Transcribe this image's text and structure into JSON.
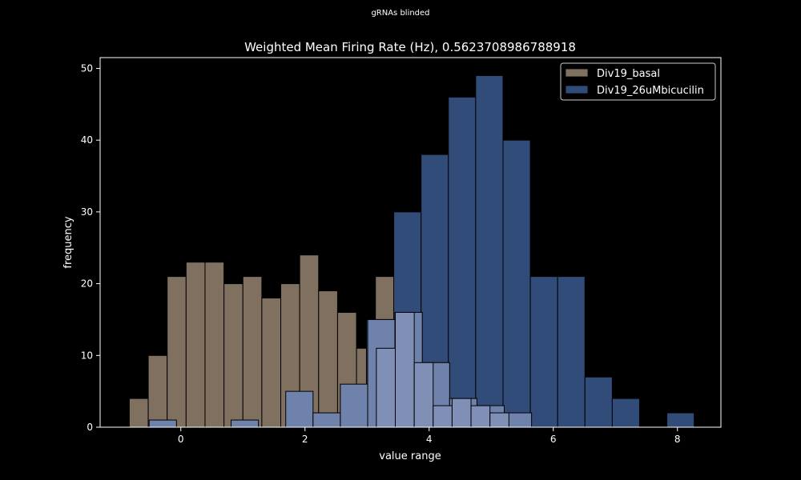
{
  "suptitle": "gRNAs blinded",
  "chart_data": {
    "type": "histogram",
    "title": "Weighted Mean Firing Rate (Hz), 0.5623708986788918",
    "xlabel": "value range",
    "ylabel": "frequency",
    "xlim": [
      -1.3,
      8.7
    ],
    "ylim": [
      0,
      51.5
    ],
    "xticks": [
      0,
      2,
      4,
      6,
      8
    ],
    "yticks": [
      0,
      10,
      20,
      30,
      40,
      50
    ],
    "grid": false,
    "legend_position": "top-right",
    "series": [
      {
        "name": "Div19_basal",
        "color": "#7f7060",
        "bin_width": 0.305,
        "bins": [
          {
            "x0": -0.83,
            "count": 4
          },
          {
            "x0": -0.525,
            "count": 10
          },
          {
            "x0": -0.22,
            "count": 21
          },
          {
            "x0": 0.085,
            "count": 23
          },
          {
            "x0": 0.39,
            "count": 23
          },
          {
            "x0": 0.695,
            "count": 20
          },
          {
            "x0": 1.0,
            "count": 21
          },
          {
            "x0": 1.305,
            "count": 18
          },
          {
            "x0": 1.61,
            "count": 20
          },
          {
            "x0": 1.915,
            "count": 24
          },
          {
            "x0": 2.22,
            "count": 19
          },
          {
            "x0": 2.525,
            "count": 16
          },
          {
            "x0": 2.83,
            "count": 11
          },
          {
            "x0": 3.135,
            "count": 21
          }
        ]
      },
      {
        "name": "Div19_26uMbicucilin",
        "color": "#324c7a",
        "bin_width": 0.44,
        "bins": [
          {
            "x0": 2.99,
            "count": 15
          },
          {
            "x0": 3.43,
            "count": 30
          },
          {
            "x0": 3.87,
            "count": 38
          },
          {
            "x0": 4.31,
            "count": 46
          },
          {
            "x0": 4.75,
            "count": 49
          },
          {
            "x0": 5.19,
            "count": 40
          },
          {
            "x0": 5.63,
            "count": 21
          },
          {
            "x0": 6.07,
            "count": 21
          },
          {
            "x0": 6.51,
            "count": 7
          },
          {
            "x0": 6.95,
            "count": 4
          },
          {
            "x0": 7.83,
            "count": 2
          }
        ]
      },
      {
        "name": "",
        "color": "#6f82ab",
        "bin_width": 0.44,
        "bins": [
          {
            "x0": -0.51,
            "count": 1
          },
          {
            "x0": 0.81,
            "count": 1
          },
          {
            "x0": 1.69,
            "count": 5
          },
          {
            "x0": 2.13,
            "count": 2
          },
          {
            "x0": 2.57,
            "count": 6
          },
          {
            "x0": 3.01,
            "count": 15
          },
          {
            "x0": 3.45,
            "count": 16
          },
          {
            "x0": 3.89,
            "count": 9
          },
          {
            "x0": 4.33,
            "count": 4
          },
          {
            "x0": 4.77,
            "count": 3
          },
          {
            "x0": 5.21,
            "count": 2
          }
        ]
      },
      {
        "name": "",
        "color": "#7f8fb5",
        "bin_width": 0.305,
        "bins": [
          {
            "x0": 3.15,
            "count": 11
          },
          {
            "x0": 3.455,
            "count": 16
          },
          {
            "x0": 3.76,
            "count": 9
          },
          {
            "x0": 4.065,
            "count": 3
          },
          {
            "x0": 4.37,
            "count": 4
          },
          {
            "x0": 4.675,
            "count": 3
          },
          {
            "x0": 4.98,
            "count": 2
          }
        ]
      }
    ]
  }
}
